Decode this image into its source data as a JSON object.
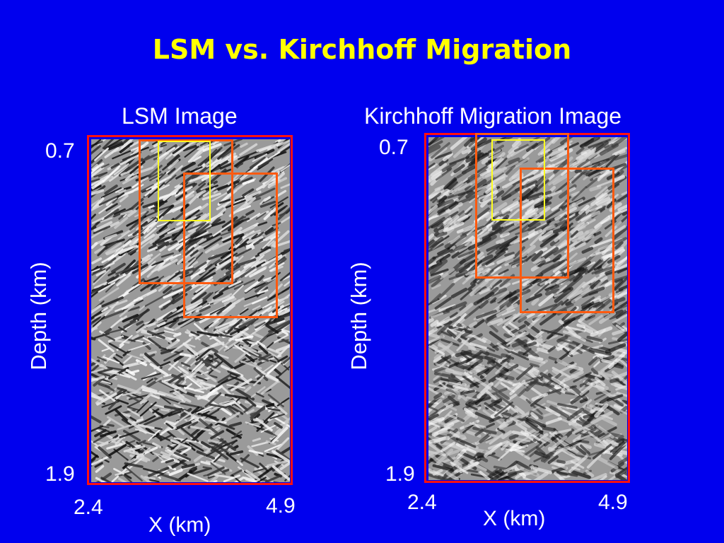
{
  "slide": {
    "title": "LSM vs. Kirchhoff Migration"
  },
  "colors": {
    "background": "#0000ee",
    "title": "#ffff00",
    "frame": "#ff1010",
    "orange_box": "#ff5a10",
    "yellow_box": "#ffff20"
  },
  "panels": [
    {
      "title": "LSM Image",
      "y_top": "0.7",
      "y_bottom": "1.9",
      "x_left": "2.4",
      "x_right": "4.9",
      "ylabel": "Depth (km)",
      "xlabel": "X (km)"
    },
    {
      "title": "Kirchhoff Migration Image",
      "y_top": "0.7",
      "y_bottom": "1.9",
      "x_left": "2.4",
      "x_right": "4.9",
      "ylabel": "Depth (km)",
      "xlabel": "X (km)"
    }
  ]
}
